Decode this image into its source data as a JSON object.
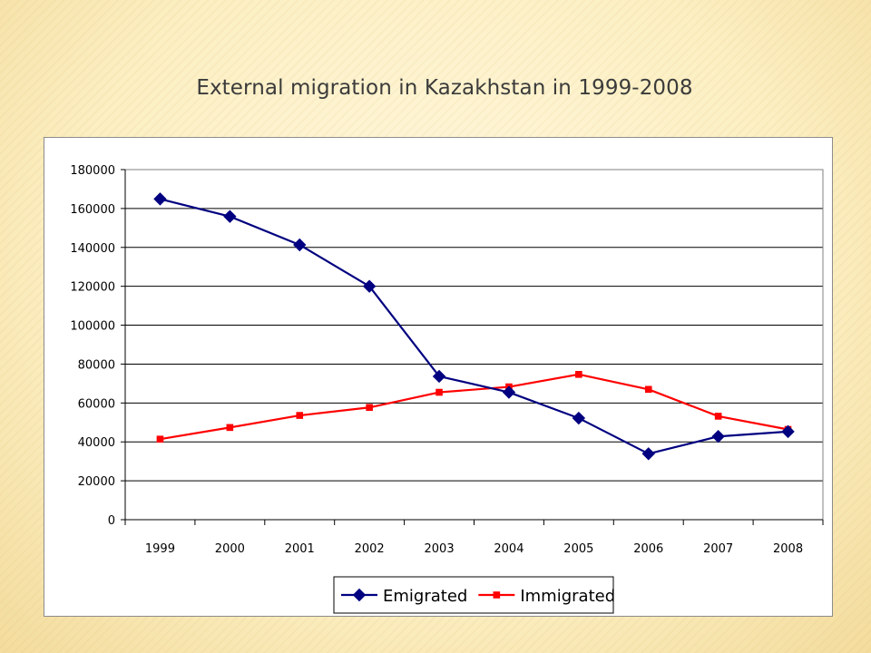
{
  "slide": {
    "title": "External migration in Kazakhstan in 1999-2008"
  },
  "chart_data": {
    "type": "line",
    "categories": [
      "1999",
      "2000",
      "2001",
      "2002",
      "2003",
      "2004",
      "2005",
      "2006",
      "2007",
      "2008"
    ],
    "series": [
      {
        "name": "Emigrated",
        "color": "#000080",
        "marker": "diamond",
        "values": [
          164900,
          155900,
          141300,
          120000,
          73700,
          65500,
          52200,
          33900,
          42800,
          45300
        ]
      },
      {
        "name": "Immigrated",
        "color": "#ff0000",
        "marker": "square",
        "values": [
          41400,
          47400,
          53600,
          57700,
          65500,
          68300,
          74700,
          67000,
          53200,
          46400
        ]
      }
    ],
    "ylim": [
      0,
      180000
    ],
    "ytick_step": 20000,
    "yticks": [
      "0",
      "20000",
      "40000",
      "60000",
      "80000",
      "100000",
      "120000",
      "140000",
      "160000",
      "180000"
    ],
    "grid": true,
    "legend_position": "bottom",
    "title": "",
    "xlabel": "",
    "ylabel": ""
  }
}
